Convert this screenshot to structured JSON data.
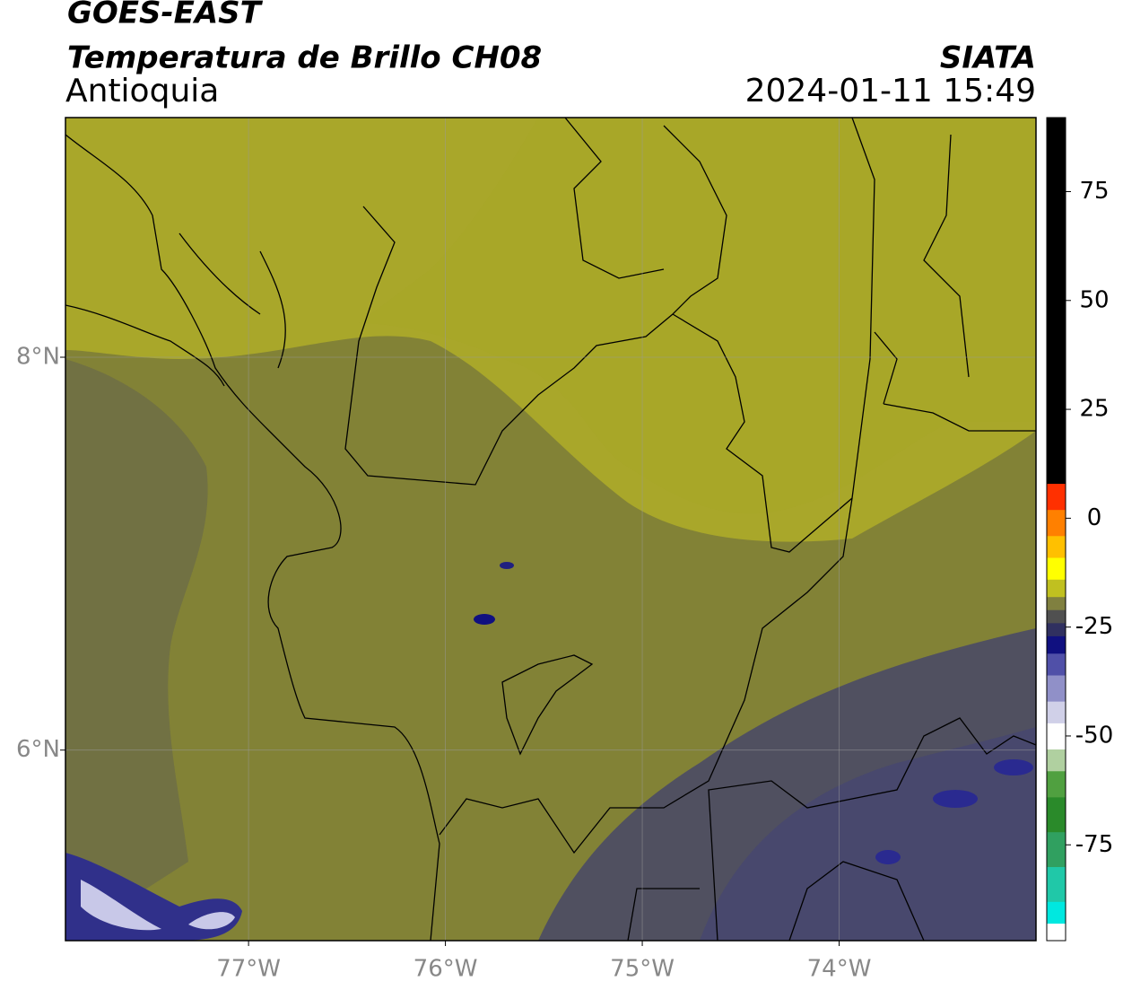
{
  "header": {
    "satellite": "GOES-EAST",
    "product": "Temperatura de Brillo CH08",
    "region": "Antioquia",
    "source": "SIATA",
    "datetime": "2024-01-11 15:49"
  },
  "map": {
    "xlim": [
      -77.93,
      -73.0
    ],
    "ylim": [
      5.03,
      9.22
    ],
    "xticks": [
      {
        "value": -77,
        "label": "77°W"
      },
      {
        "value": -76,
        "label": "76°W"
      },
      {
        "value": -75,
        "label": "75°W"
      },
      {
        "value": -74,
        "label": "74°W"
      }
    ],
    "yticks": [
      {
        "value": 8,
        "label": "8°N"
      },
      {
        "value": 6,
        "label": "6°N"
      }
    ],
    "grid": true
  },
  "colorbar": {
    "lim": [
      -97,
      92
    ],
    "ticks": [
      75,
      50,
      25,
      0,
      -25,
      -50,
      -75
    ],
    "segments": [
      {
        "from": -97,
        "color": "#ffffff"
      },
      {
        "from": -93,
        "color": "#00e8e0"
      },
      {
        "from": -88,
        "color": "#20c8a8"
      },
      {
        "from": -80,
        "color": "#30a060"
      },
      {
        "from": -72,
        "color": "#2a8a2a"
      },
      {
        "from": -64,
        "color": "#50a040"
      },
      {
        "from": -58,
        "color": "#b0d0a0"
      },
      {
        "from": -53,
        "color": "#ffffff"
      },
      {
        "from": -47,
        "color": "#d0d0e8"
      },
      {
        "from": -42,
        "color": "#9090c8"
      },
      {
        "from": -36,
        "color": "#5050a8"
      },
      {
        "from": -31,
        "color": "#101080"
      },
      {
        "from": -27,
        "color": "#303060"
      },
      {
        "from": -24,
        "color": "#505050"
      },
      {
        "from": -21,
        "color": "#808040"
      },
      {
        "from": -18,
        "color": "#c0c020"
      },
      {
        "from": -14,
        "color": "#ffff00"
      },
      {
        "from": -9,
        "color": "#ffc000"
      },
      {
        "from": -4,
        "color": "#ff8000"
      },
      {
        "from": 2,
        "color": "#ff3000"
      },
      {
        "from": 8,
        "color": "#000000"
      }
    ]
  }
}
